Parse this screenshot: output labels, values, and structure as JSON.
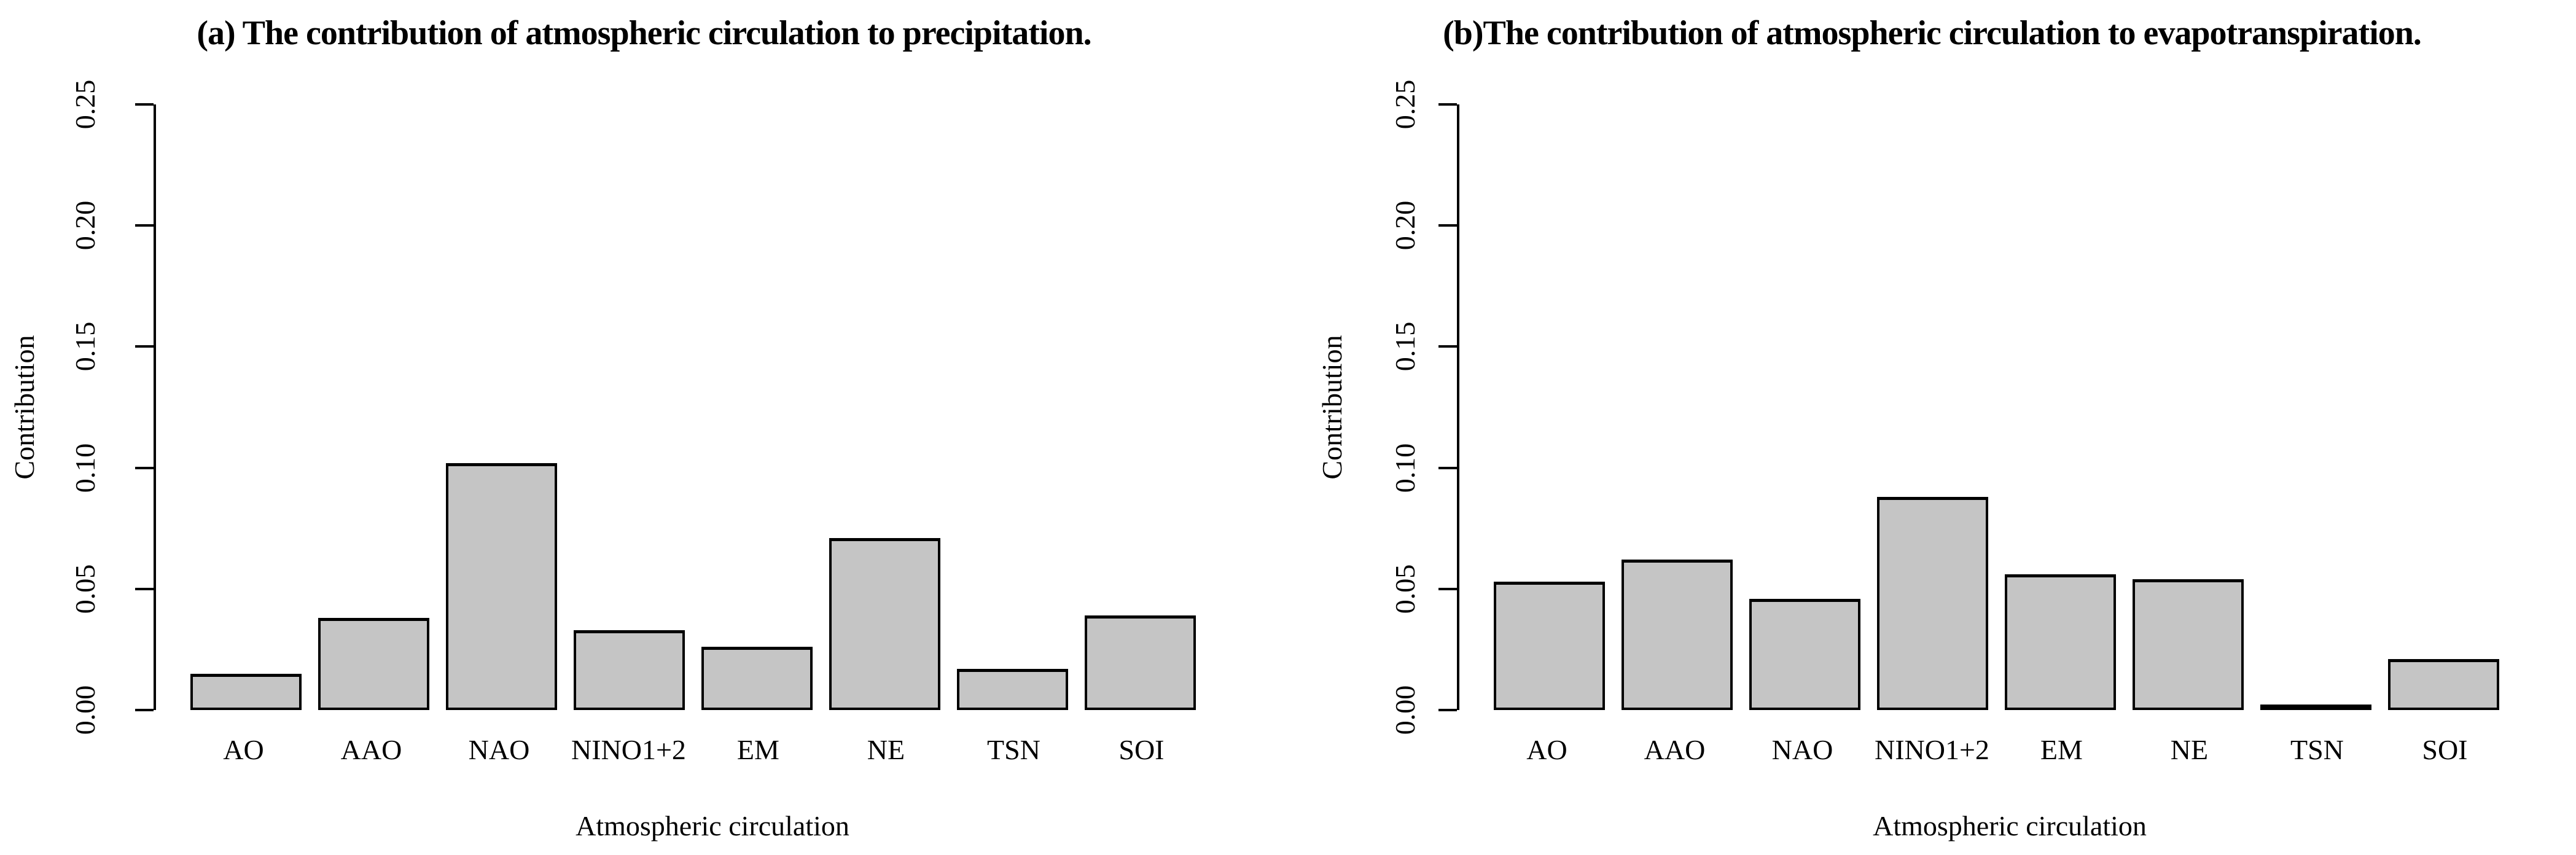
{
  "figure": {
    "background": "#ffffff",
    "text_color": "#000000"
  },
  "chart_data": [
    {
      "type": "bar",
      "panel": "a",
      "title": "(a) The contribution of atmospheric circulation to precipitation.",
      "xlabel": "Atmospheric circulation",
      "ylabel": "Contribution",
      "categories": [
        "AO",
        "AAO",
        "NAO",
        "NINO1+2",
        "EM",
        "NE",
        "TSN",
        "SOI"
      ],
      "values": [
        0.015,
        0.038,
        0.102,
        0.033,
        0.026,
        0.071,
        0.017,
        0.039
      ],
      "ylim": [
        0,
        0.25
      ],
      "yticks": [
        0,
        0.05,
        0.1,
        0.15,
        0.2,
        0.25
      ],
      "ytick_labels": [
        "0.00",
        "0.05",
        "0.10",
        "0.15",
        "0.20",
        "0.25"
      ],
      "bar_fill": "#c5c5c5",
      "bar_border": "#000000",
      "grid": false,
      "legend": false
    },
    {
      "type": "bar",
      "panel": "b",
      "title": "(b)The contribution of atmospheric circulation to evapotranspiration.",
      "xlabel": "Atmospheric circulation",
      "ylabel": "Contribution",
      "categories": [
        "AO",
        "AAO",
        "NAO",
        "NINO1+2",
        "EM",
        "NE",
        "TSN",
        "SOI"
      ],
      "values": [
        0.053,
        0.062,
        0.046,
        0.088,
        0.056,
        0.054,
        0.002,
        0.021
      ],
      "ylim": [
        0,
        0.25
      ],
      "yticks": [
        0,
        0.05,
        0.1,
        0.15,
        0.2,
        0.25
      ],
      "ytick_labels": [
        "0.00",
        "0.05",
        "0.10",
        "0.15",
        "0.20",
        "0.25"
      ],
      "bar_fill": "#c5c5c5",
      "bar_border": "#000000",
      "grid": false,
      "legend": false
    }
  ]
}
